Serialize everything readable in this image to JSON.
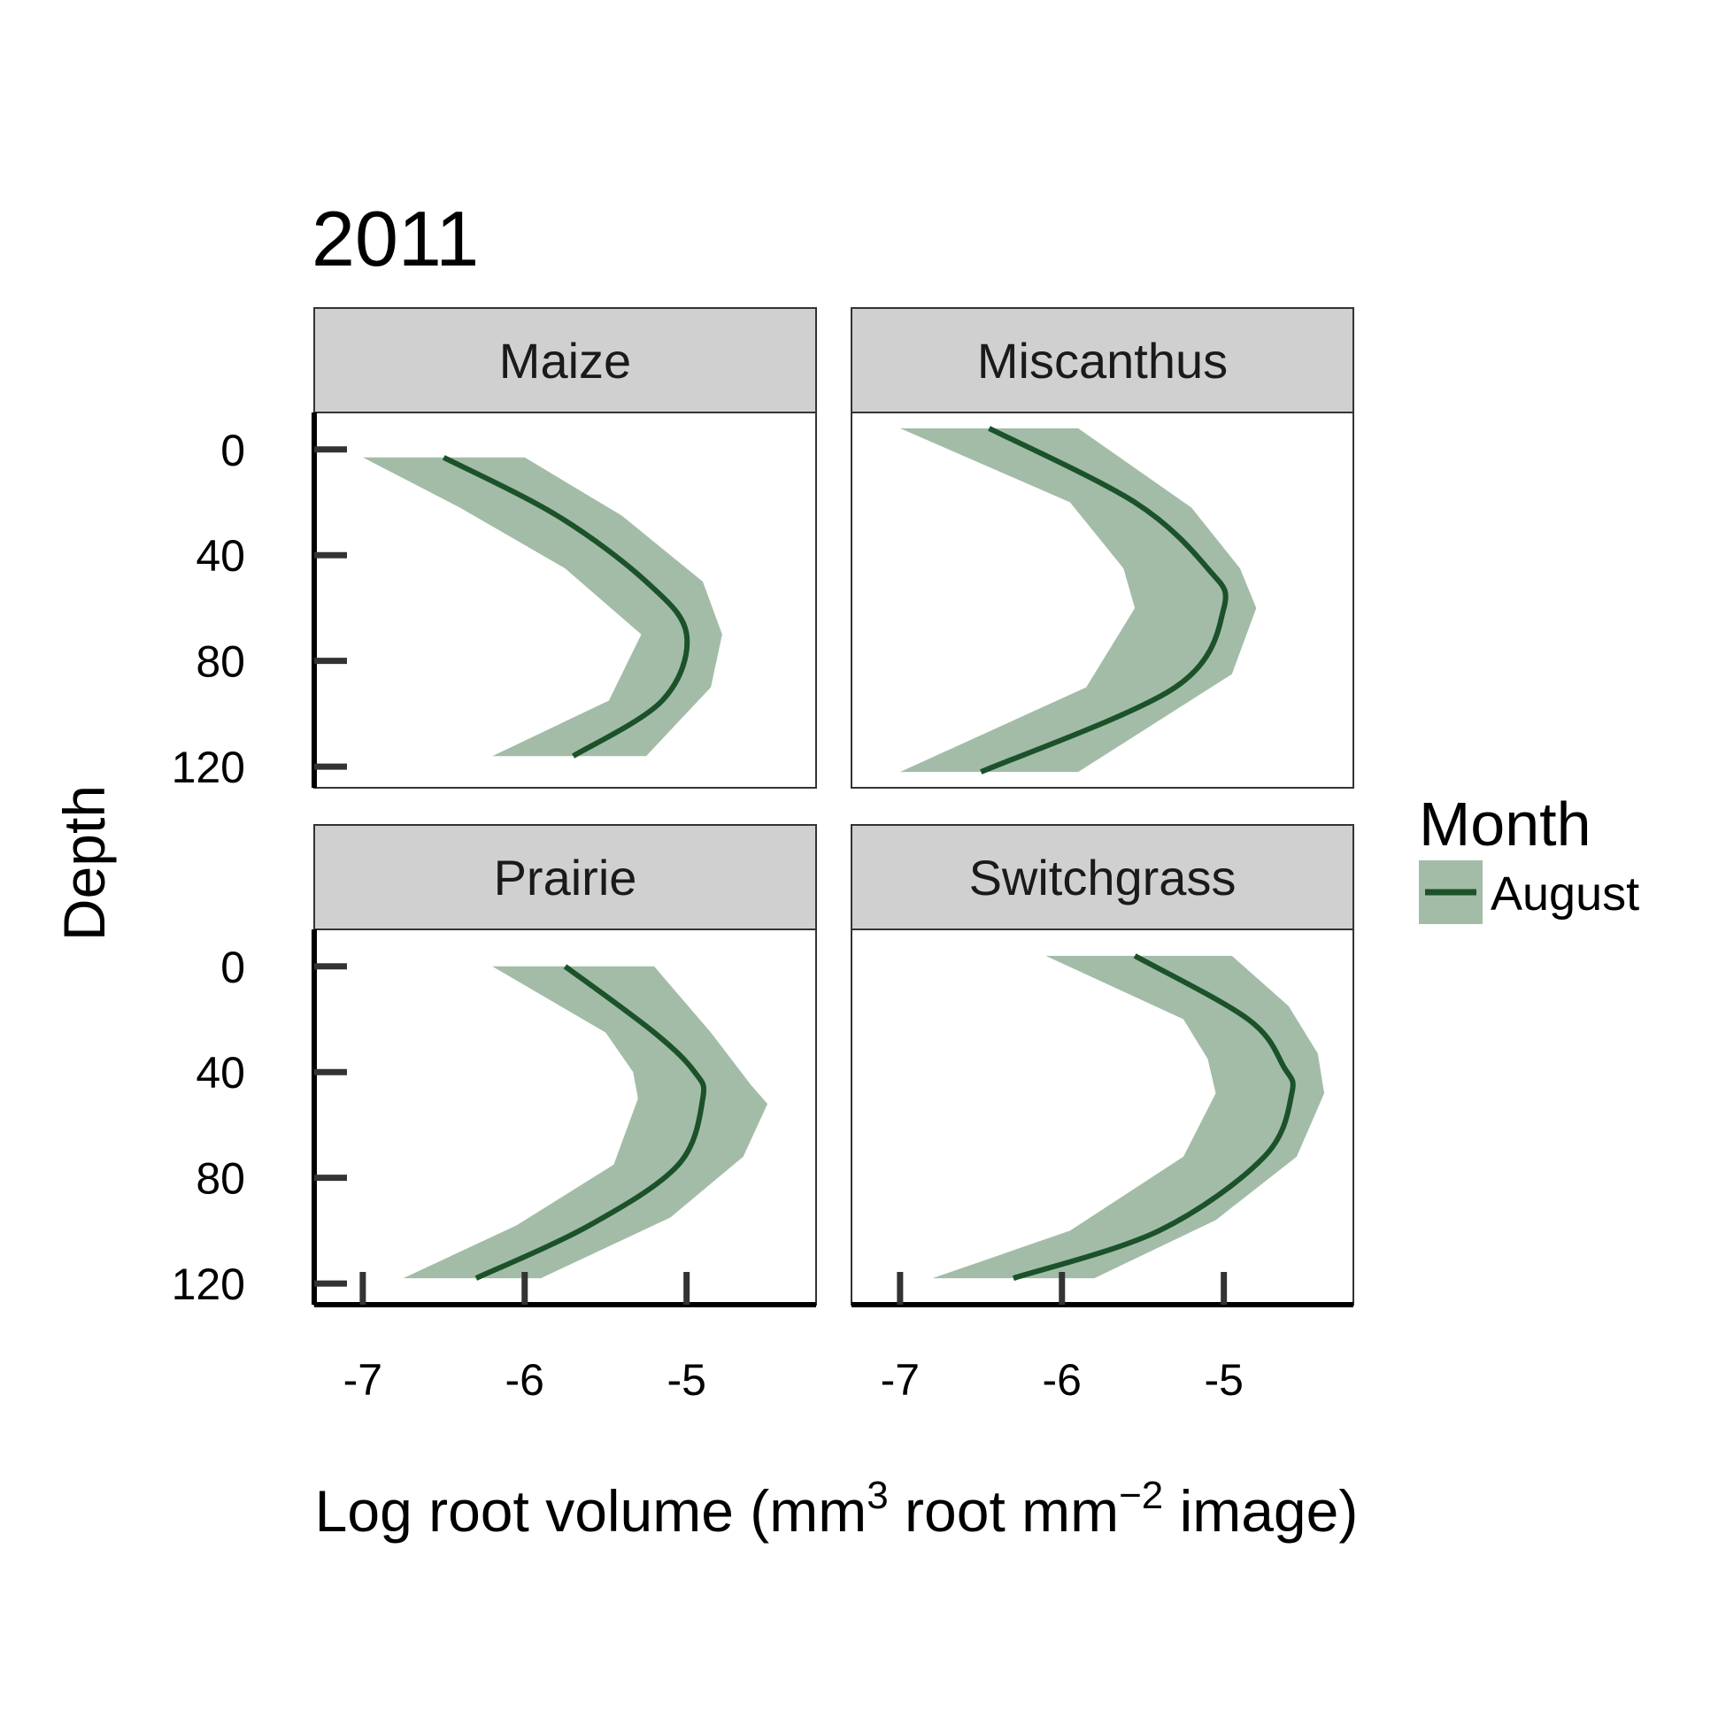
{
  "chart_data": {
    "type": "line",
    "title": "2011",
    "xlabel": "Log root volume (mm³ root mm⁻² image)",
    "xlabel_parts": {
      "a": "Log root volume (mm",
      "sup1": "3",
      "b": " root mm",
      "sup2": "−2",
      "c": " image)"
    },
    "ylabel": "Depth",
    "xlim": [
      -7.3,
      -4.2
    ],
    "ylim": [
      -14,
      128
    ],
    "y_reversed": true,
    "x_ticks": [
      -7,
      -6,
      -5
    ],
    "x_tick_labels": [
      "-7",
      "-6",
      "-5"
    ],
    "y_ticks": [
      0,
      40,
      80,
      120
    ],
    "y_tick_labels": [
      "0",
      "40",
      "80",
      "120"
    ],
    "legend": {
      "title": "Month",
      "entries": [
        {
          "label": "August",
          "line_color": "#1b5229",
          "band_color": "#a3bca8"
        }
      ]
    },
    "colors": {
      "line": "#1b5229",
      "band": "#a3bca8",
      "strip": "#d0d0d0",
      "border": "#333333"
    },
    "panels": [
      {
        "name": "Maize",
        "line": [
          [
            -6.5,
            3
          ],
          [
            -5.8,
            25
          ],
          [
            -5.25,
            50
          ],
          [
            -5.0,
            70
          ],
          [
            -5.15,
            95
          ],
          [
            -5.7,
            116
          ]
        ],
        "band_left": [
          [
            -7.0,
            3
          ],
          [
            -6.4,
            22
          ],
          [
            -5.75,
            45
          ],
          [
            -5.28,
            70
          ],
          [
            -5.48,
            95
          ],
          [
            -6.2,
            116
          ]
        ],
        "band_right": [
          [
            -6.0,
            3
          ],
          [
            -5.4,
            25
          ],
          [
            -4.9,
            50
          ],
          [
            -4.78,
            70
          ],
          [
            -4.85,
            90
          ],
          [
            -5.25,
            116
          ]
        ]
      },
      {
        "name": "Miscanthus",
        "line": [
          [
            -6.45,
            -8
          ],
          [
            -5.55,
            20
          ],
          [
            -5.1,
            45
          ],
          [
            -5.0,
            60
          ],
          [
            -5.3,
            90
          ],
          [
            -6.5,
            122
          ]
        ],
        "band_left": [
          [
            -7.0,
            -8
          ],
          [
            -5.95,
            20
          ],
          [
            -5.62,
            45
          ],
          [
            -5.55,
            60
          ],
          [
            -5.85,
            90
          ],
          [
            -7.0,
            122
          ]
        ],
        "band_right": [
          [
            -5.9,
            -8
          ],
          [
            -5.2,
            22
          ],
          [
            -4.9,
            45
          ],
          [
            -4.8,
            60
          ],
          [
            -4.95,
            85
          ],
          [
            -5.9,
            122
          ]
        ]
      },
      {
        "name": "Prairie",
        "line": [
          [
            -5.75,
            0
          ],
          [
            -5.2,
            25
          ],
          [
            -4.95,
            40
          ],
          [
            -4.9,
            50
          ],
          [
            -5.05,
            75
          ],
          [
            -5.6,
            98
          ],
          [
            -6.3,
            118
          ]
        ],
        "band_left": [
          [
            -6.2,
            0
          ],
          [
            -5.5,
            25
          ],
          [
            -5.33,
            40
          ],
          [
            -5.3,
            50
          ],
          [
            -5.45,
            75
          ],
          [
            -6.05,
            98
          ],
          [
            -6.75,
            118
          ]
        ],
        "band_right": [
          [
            -5.2,
            0
          ],
          [
            -4.85,
            25
          ],
          [
            -4.6,
            45
          ],
          [
            -4.5,
            52
          ],
          [
            -4.65,
            72
          ],
          [
            -5.1,
            95
          ],
          [
            -5.9,
            118
          ]
        ]
      },
      {
        "name": "Switchgrass",
        "line": [
          [
            -5.55,
            -4
          ],
          [
            -4.85,
            20
          ],
          [
            -4.63,
            38
          ],
          [
            -4.58,
            48
          ],
          [
            -4.75,
            72
          ],
          [
            -5.4,
            100
          ],
          [
            -6.3,
            118
          ]
        ],
        "band_left": [
          [
            -6.1,
            -4
          ],
          [
            -5.25,
            20
          ],
          [
            -5.1,
            35
          ],
          [
            -5.05,
            48
          ],
          [
            -5.25,
            72
          ],
          [
            -5.95,
            100
          ],
          [
            -6.8,
            118
          ]
        ],
        "band_right": [
          [
            -4.95,
            -4
          ],
          [
            -4.6,
            15
          ],
          [
            -4.42,
            33
          ],
          [
            -4.38,
            48
          ],
          [
            -4.55,
            72
          ],
          [
            -5.05,
            96
          ],
          [
            -5.8,
            118
          ]
        ]
      }
    ]
  }
}
